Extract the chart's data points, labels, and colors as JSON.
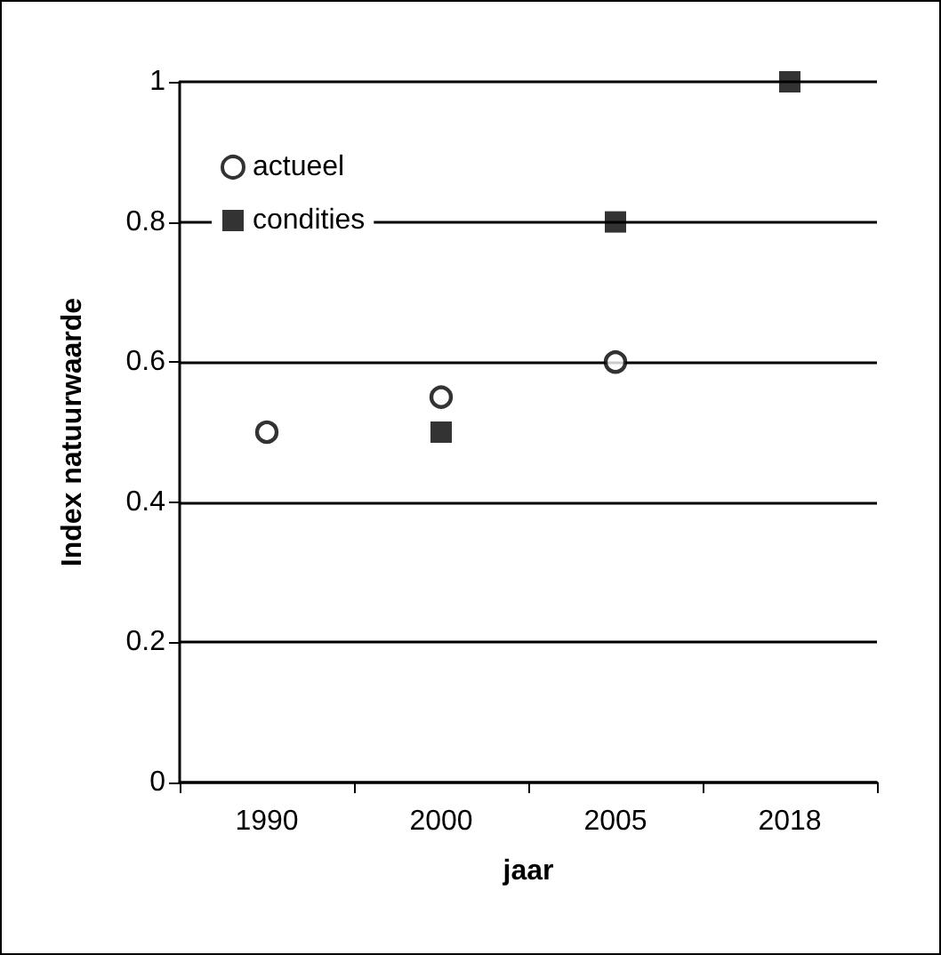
{
  "chart_data": {
    "type": "scatter",
    "xlabel": "jaar",
    "ylabel": "Index natuurwaarde",
    "categories": [
      "1990",
      "2000",
      "2005",
      "2018"
    ],
    "series": [
      {
        "name": "actueel",
        "color": "#000000",
        "marker": "circle",
        "values": [
          0.5,
          0.55,
          0.6,
          null
        ]
      },
      {
        "name": "condities",
        "color": "#000000",
        "marker": "square",
        "values": [
          null,
          0.5,
          0.8,
          1.0
        ]
      }
    ],
    "ylim": [
      0,
      1
    ],
    "yticks": [
      0,
      0.2,
      0.4,
      0.6,
      0.8,
      1
    ],
    "grid": "y",
    "legend": "top left"
  }
}
